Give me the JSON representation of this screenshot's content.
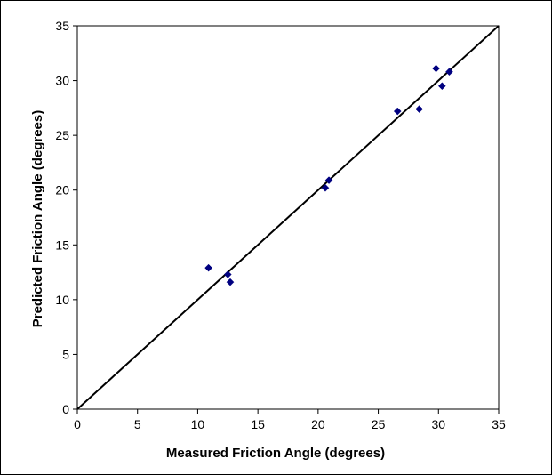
{
  "chart_data": {
    "type": "scatter",
    "xlabel": "Measured Friction Angle (degrees)",
    "ylabel": "Predicted Friction Angle (degrees)",
    "xlim": [
      0,
      35
    ],
    "ylim": [
      0,
      35
    ],
    "xticks": [
      0,
      5,
      10,
      15,
      20,
      25,
      30,
      35
    ],
    "yticks": [
      0,
      5,
      10,
      15,
      20,
      25,
      30,
      35
    ],
    "grid": false,
    "legend": "none",
    "series": [
      {
        "marker": "diamond",
        "color": "#000080",
        "points": [
          {
            "x": 10.9,
            "y": 12.9
          },
          {
            "x": 12.5,
            "y": 12.3
          },
          {
            "x": 12.7,
            "y": 11.6
          },
          {
            "x": 20.6,
            "y": 20.2
          },
          {
            "x": 20.9,
            "y": 20.9
          },
          {
            "x": 26.6,
            "y": 27.2
          },
          {
            "x": 28.4,
            "y": 27.4
          },
          {
            "x": 29.8,
            "y": 31.1
          },
          {
            "x": 30.3,
            "y": 29.5
          },
          {
            "x": 30.9,
            "y": 30.8
          }
        ]
      }
    ],
    "reference_line": {
      "x": [
        0,
        35
      ],
      "y": [
        0,
        35
      ],
      "color": "#000000"
    }
  }
}
